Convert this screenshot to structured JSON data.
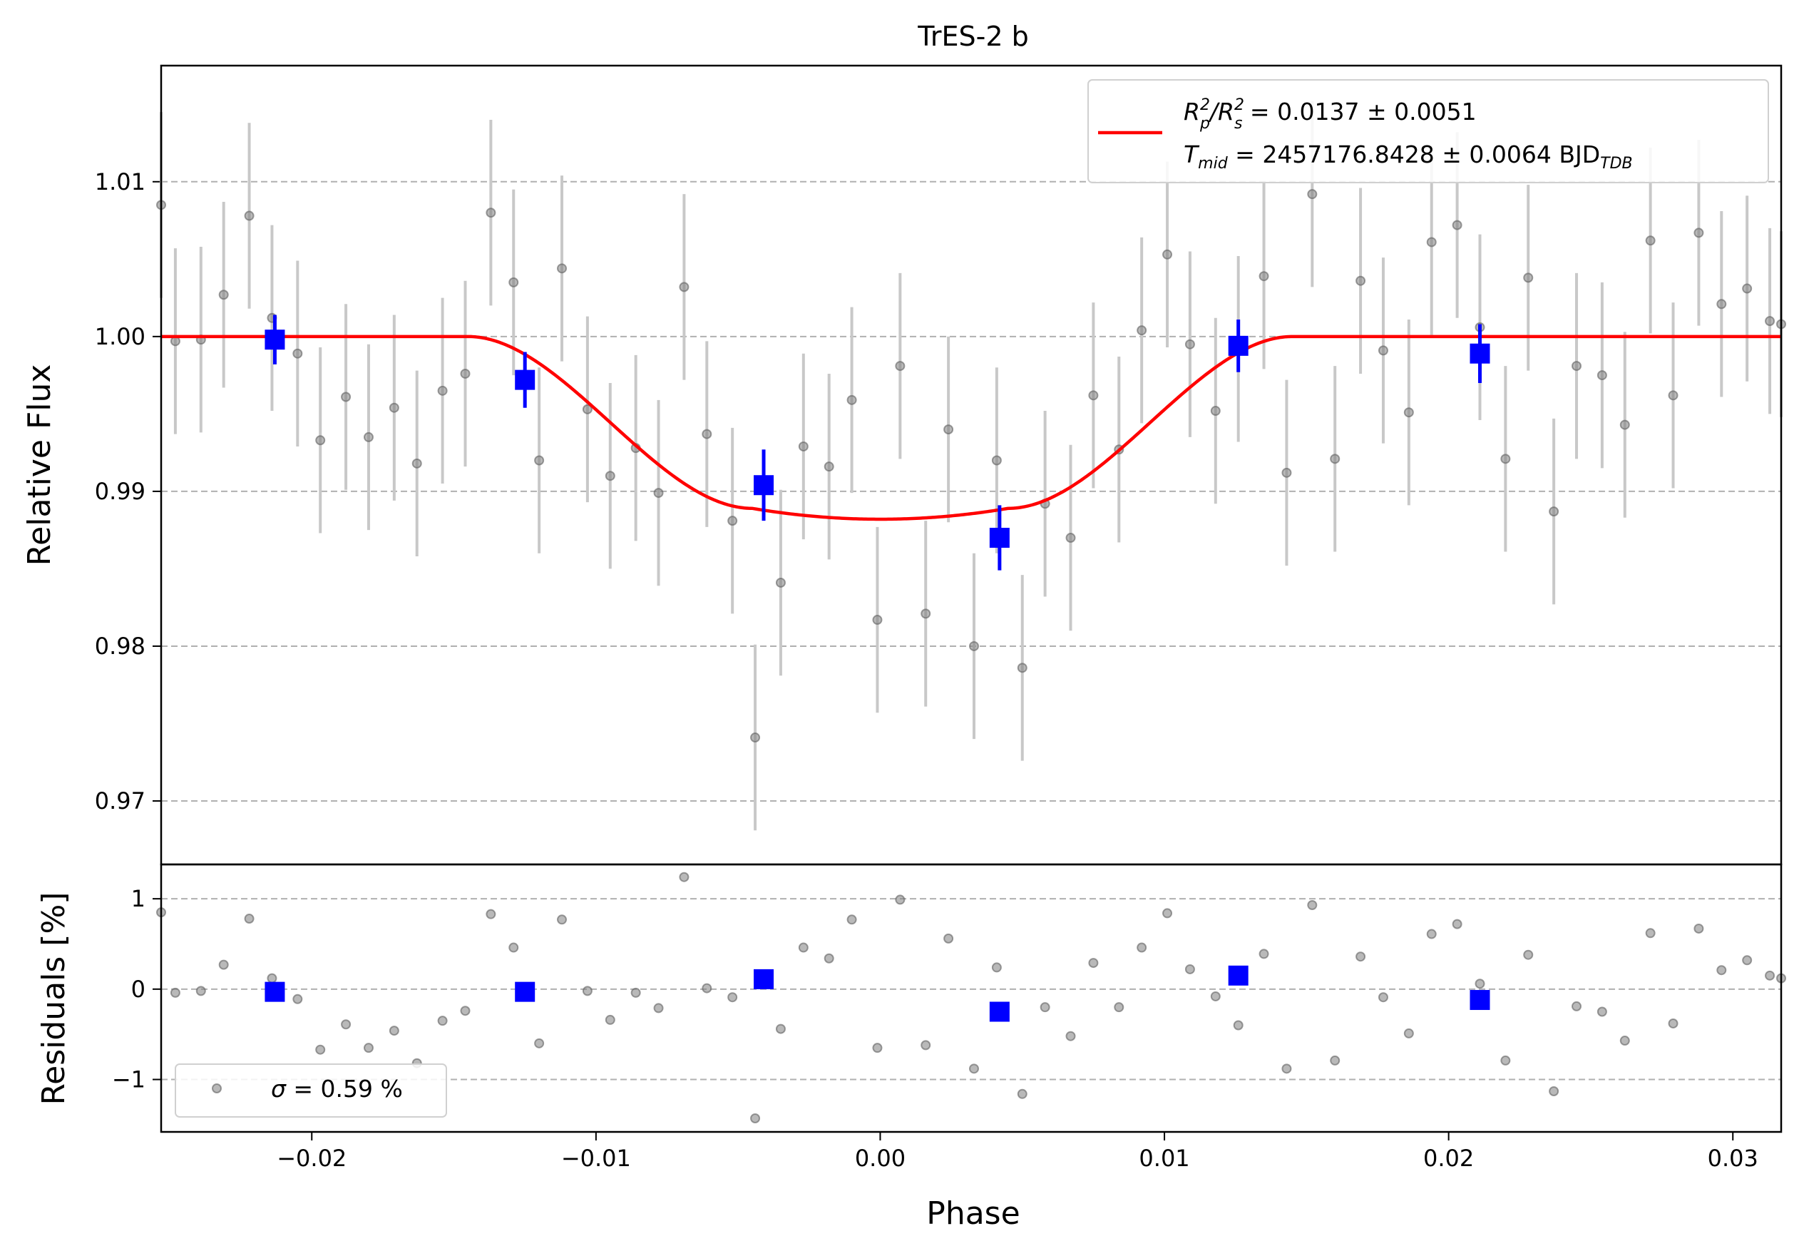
{
  "chart_data": {
    "type": "scatter",
    "title": "TrES-2 b",
    "xlabel": "Phase",
    "xlim": [
      -0.0253,
      0.0317
    ],
    "xticks": [
      -0.02,
      -0.01,
      0.0,
      0.01,
      0.02,
      0.03
    ],
    "xtick_labels": [
      "−0.02",
      "−0.01",
      "0.00",
      "0.01",
      "0.02",
      "0.03"
    ],
    "colors": {
      "model": "#ff0000",
      "binned": "#0000ff",
      "raw_point": "#808080",
      "raw_error": "#c8c8c8",
      "grid": "#b0b0b0"
    },
    "main_panel": {
      "ylabel": "Relative Flux",
      "ylim": [
        0.9659,
        1.0175
      ],
      "yticks": [
        0.97,
        0.98,
        0.99,
        1.0,
        1.01
      ],
      "ytick_labels": [
        "0.97",
        "0.98",
        "0.99",
        "1.00",
        "1.01"
      ],
      "grid": "horizontal dashed",
      "legend": {
        "placement": "upper-right",
        "line1": {
          "lhs": "R",
          "lhs_sup": "2",
          "lhs_sub": "p",
          "mid": "/R",
          "mid_sup": "2",
          "mid_sub": "s",
          "rhs": " = 0.0137 ± 0.0051"
        },
        "line2": {
          "lhs": "T",
          "lhs_sub": "mid",
          "rhs": " = 2457176.8428 ± 0.0064 BJD",
          "rhs_sub": "TDB"
        }
      },
      "model": {
        "rp2_rs2": 0.0137,
        "depth": 0.0118,
        "ingress_start": -0.0145,
        "full_start": -0.0045,
        "full_end": 0.0045,
        "egress_end": 0.0145
      },
      "raw": {
        "x": [
          -0.0253,
          -0.0248,
          -0.0239,
          -0.0231,
          -0.0222,
          -0.0214,
          -0.0205,
          -0.0197,
          -0.0188,
          -0.018,
          -0.0171,
          -0.0163,
          -0.0154,
          -0.0146,
          -0.0137,
          -0.0129,
          -0.012,
          -0.0112,
          -0.0103,
          -0.0095,
          -0.0086,
          -0.0078,
          -0.0069,
          -0.0061,
          -0.0052,
          -0.0044,
          -0.0035,
          -0.0027,
          -0.0018,
          -0.001,
          -0.0001,
          0.0007,
          0.0016,
          0.0024,
          0.0033,
          0.0041,
          0.005,
          0.0058,
          0.0067,
          0.0075,
          0.0084,
          0.0092,
          0.0101,
          0.0109,
          0.0118,
          0.0126,
          0.0135,
          0.0143,
          0.0152,
          0.016,
          0.0169,
          0.0177,
          0.0186,
          0.0194,
          0.0203,
          0.0211,
          0.022,
          0.0228,
          0.0237,
          0.0245,
          0.0254,
          0.0262,
          0.0271,
          0.0279,
          0.0288,
          0.0296,
          0.0305,
          0.0313,
          0.0317
        ],
        "y": [
          1.0085,
          0.9997,
          0.9998,
          1.0027,
          1.0078,
          1.0012,
          0.9989,
          0.9933,
          0.9961,
          0.9935,
          0.9954,
          0.9918,
          0.9965,
          0.9976,
          1.008,
          1.0035,
          0.992,
          1.0044,
          0.9953,
          0.991,
          0.9928,
          0.9899,
          1.0032,
          0.9937,
          0.9881,
          0.9741,
          0.9841,
          0.9929,
          0.9916,
          0.9959,
          0.9817,
          0.9981,
          0.9821,
          0.994,
          0.98,
          0.992,
          0.9786,
          0.9892,
          0.987,
          0.9962,
          0.9927,
          1.0004,
          1.0053,
          0.9995,
          0.9952,
          0.9992,
          1.0039,
          0.9912,
          1.0092,
          0.9921,
          1.0036,
          0.9991,
          0.9951,
          1.0061,
          1.0072,
          1.0006,
          0.9921,
          1.0038,
          0.9887,
          0.9981,
          0.9975,
          0.9943,
          1.0062,
          0.9962,
          1.0067,
          1.0021,
          1.0031,
          1.001,
          1.0008
        ],
        "yerr": 0.006,
        "residuals_pct": [
          0.85,
          -0.04,
          -0.02,
          0.27,
          0.78,
          0.12,
          -0.11,
          -0.67,
          -0.39,
          -0.65,
          -0.46,
          -0.82,
          -0.35,
          -0.24,
          0.83,
          0.46,
          -0.6,
          0.77,
          -0.02,
          -0.34,
          -0.04,
          -0.21,
          1.24,
          0.01,
          -0.09,
          -1.43,
          -0.44,
          0.46,
          0.34,
          0.77,
          -0.65,
          0.99,
          -0.62,
          0.56,
          -0.88,
          0.24,
          -1.16,
          -0.2,
          -0.52,
          0.29,
          -0.2,
          0.46,
          0.84,
          0.22,
          -0.08,
          -0.4,
          0.39,
          -0.88,
          0.93,
          -0.79,
          0.36,
          -0.09,
          -0.49,
          0.61,
          0.72,
          0.06,
          -0.79,
          0.38,
          -1.13,
          -0.19,
          -0.25,
          -0.57,
          0.62,
          -0.38,
          0.67,
          0.21,
          0.32,
          0.15,
          0.12
        ]
      },
      "binned": {
        "x": [
          -0.0213,
          -0.0125,
          -0.0041,
          0.0042,
          0.0126,
          0.0211
        ],
        "y": [
          0.9998,
          0.9972,
          0.9904,
          0.987,
          0.9994,
          0.9989
        ],
        "yerr": [
          0.0016,
          0.0018,
          0.0023,
          0.0021,
          0.0017,
          0.0019
        ],
        "residuals_pct": [
          -0.03,
          -0.03,
          0.11,
          -0.25,
          0.15,
          -0.12
        ]
      }
    },
    "residual_panel": {
      "ylabel": "Residuals [%]",
      "ylim": [
        -1.58,
        1.38
      ],
      "yticks": [
        -1,
        0,
        1
      ],
      "ytick_labels": [
        "−1",
        "0",
        "1"
      ],
      "grid": "horizontal dashed",
      "legend": {
        "placement": "lower-left",
        "symbol": "σ",
        "text": " = 0.59 %"
      }
    }
  }
}
